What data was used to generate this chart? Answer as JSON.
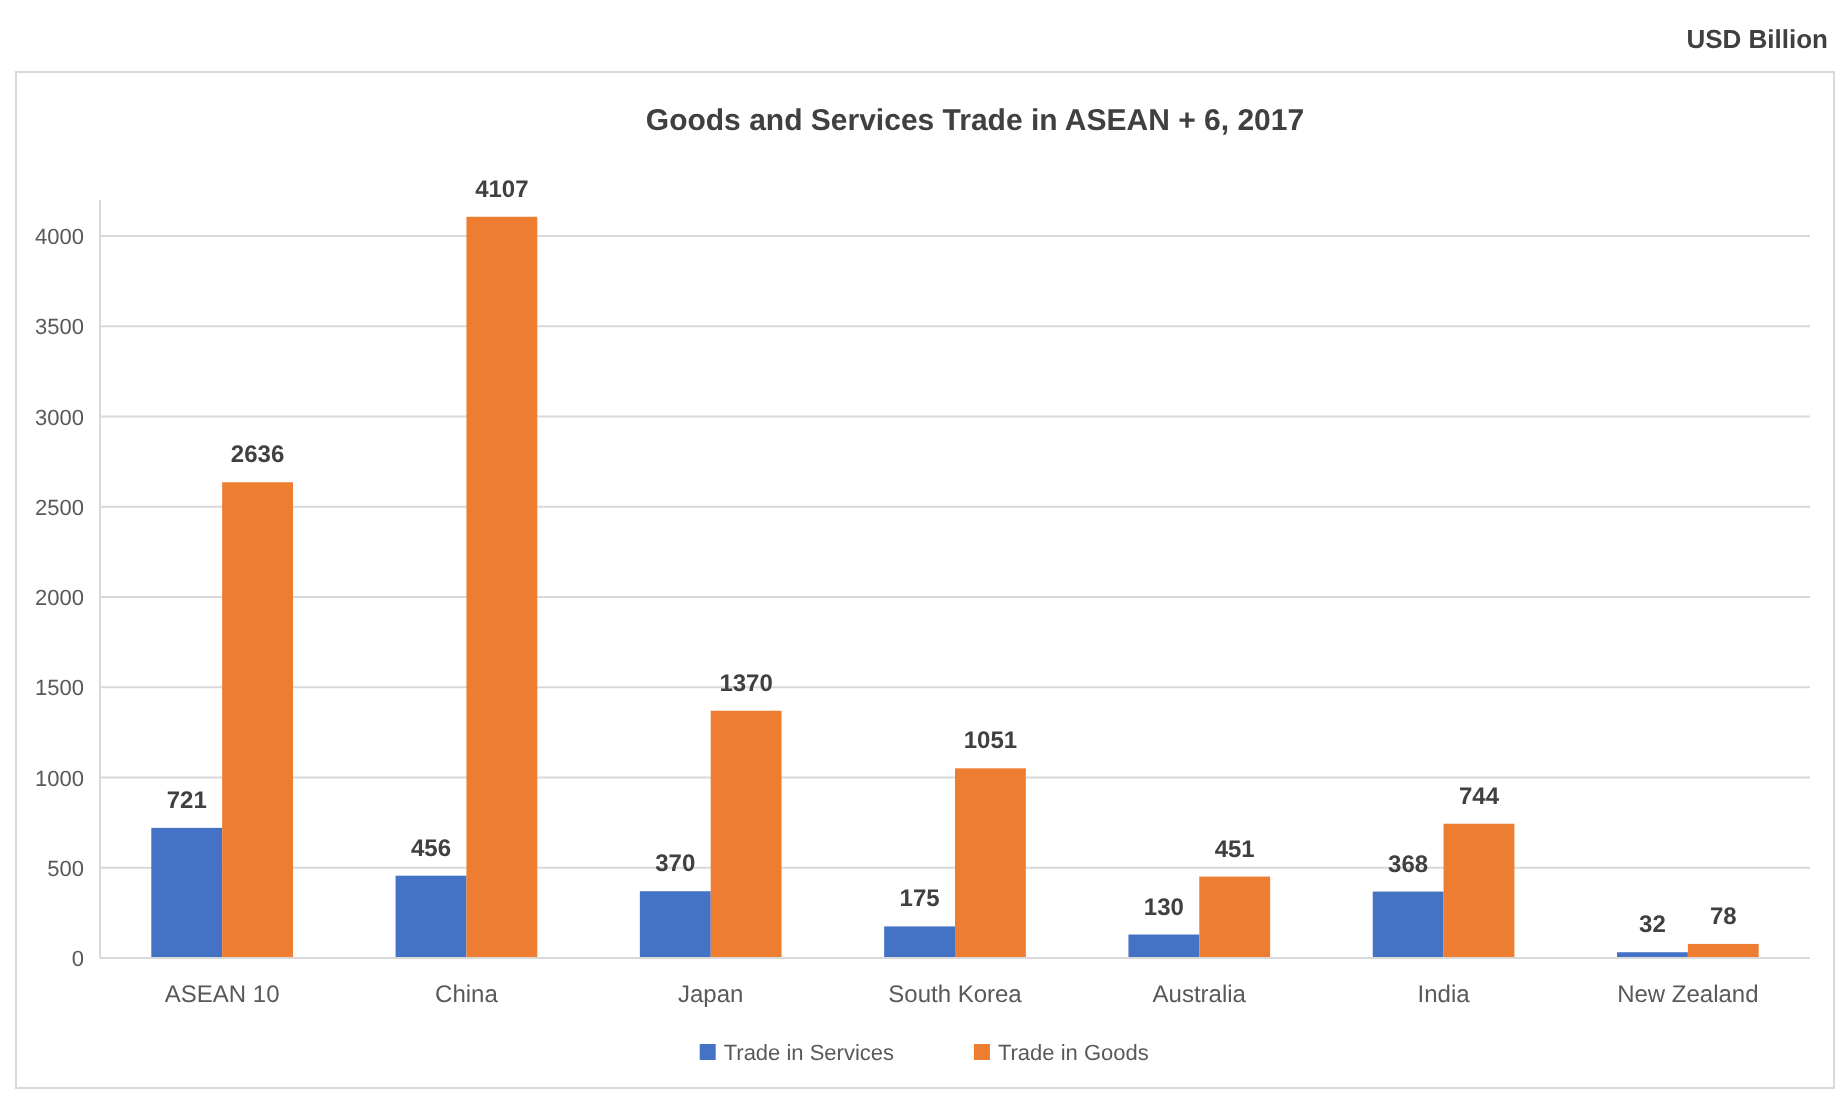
{
  "chart_data": {
    "type": "bar",
    "title": "Goods and Services Trade in ASEAN + 6, 2017",
    "annotations": [
      "USD Billion"
    ],
    "categories": [
      "ASEAN 10",
      "China",
      "Japan",
      "South Korea",
      "Australia",
      "India",
      "New Zealand"
    ],
    "series": [
      {
        "name": "Trade in Services",
        "color": "#4472c4",
        "values": [
          721,
          456,
          370,
          175,
          130,
          368,
          32
        ]
      },
      {
        "name": "Trade in Goods",
        "color": "#ed7d31",
        "values": [
          2636,
          4107,
          1370,
          1051,
          451,
          744,
          78
        ]
      }
    ],
    "ylim": [
      0,
      4200
    ],
    "yticks": [
      0,
      500,
      1000,
      1500,
      2000,
      2500,
      3000,
      3500,
      4000
    ],
    "grid": "y",
    "legend": "bottom",
    "data_labels": true
  }
}
